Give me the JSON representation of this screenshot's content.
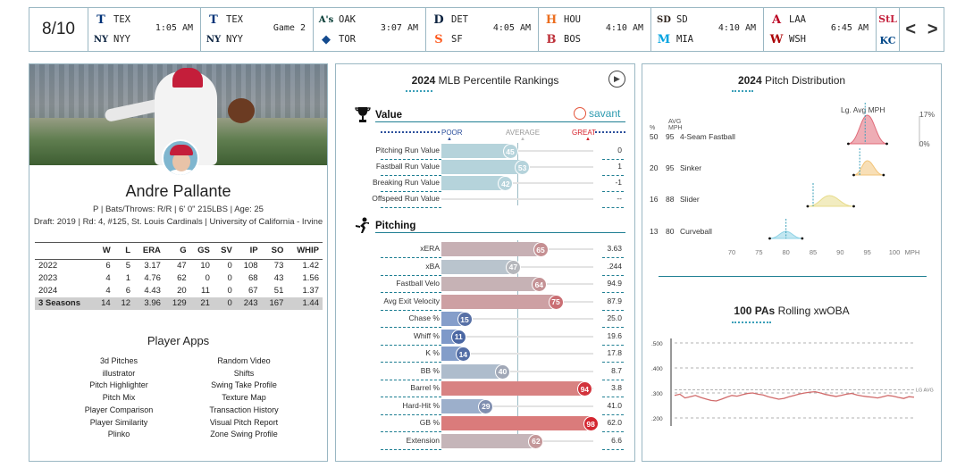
{
  "scorebar": {
    "date": "8/10",
    "games": [
      {
        "away": "TEX",
        "home": "NYY",
        "away_color": "#003278",
        "home_color": "#0c2340",
        "away_logo": "T",
        "home_logo": "NY",
        "status": "1:05 AM"
      },
      {
        "away": "TEX",
        "home": "NYY",
        "away_color": "#003278",
        "home_color": "#0c2340",
        "away_logo": "T",
        "home_logo": "NY",
        "status": "Game 2"
      },
      {
        "away": "OAK",
        "home": "TOR",
        "away_color": "#003831",
        "home_color": "#134a8e",
        "away_logo": "A's",
        "home_logo": "◆",
        "status": "3:07 AM"
      },
      {
        "away": "DET",
        "home": "SF",
        "away_color": "#0c2340",
        "home_color": "#fd5a1e",
        "away_logo": "D",
        "home_logo": "S",
        "status": "4:05 AM"
      },
      {
        "away": "HOU",
        "home": "BOS",
        "away_color": "#eb6e1f",
        "home_color": "#bd3039",
        "away_logo": "H",
        "home_logo": "B",
        "status": "4:10 AM"
      },
      {
        "away": "SD",
        "home": "MIA",
        "away_color": "#2f241d",
        "home_color": "#00a3e0",
        "away_logo": "SD",
        "home_logo": "M",
        "status": "4:10 AM"
      },
      {
        "away": "LAA",
        "home": "WSH",
        "away_color": "#ba0021",
        "home_color": "#ab0003",
        "away_logo": "A",
        "home_logo": "W",
        "status": "6:45 AM"
      }
    ],
    "last_game": {
      "away_logo": "StL",
      "home_logo": "KC",
      "away_color": "#c41e3a",
      "home_color": "#004687"
    },
    "prev": "<",
    "next": ">"
  },
  "player": {
    "name": "Andre Pallante",
    "info": "P | Bats/Throws: R/R | 6' 0\" 215LBS | Age: 25",
    "draft": "Draft: 2019 | Rd: 4, #125, St. Louis Cardinals | University of California - Irvine",
    "stats_headers": [
      "",
      "W",
      "L",
      "ERA",
      "G",
      "GS",
      "SV",
      "IP",
      "SO",
      "WHIP"
    ],
    "stats_rows": [
      [
        "2022",
        "6",
        "5",
        "3.17",
        "47",
        "10",
        "0",
        "108",
        "73",
        "1.42"
      ],
      [
        "2023",
        "4",
        "1",
        "4.76",
        "62",
        "0",
        "0",
        "68",
        "43",
        "1.56"
      ],
      [
        "2024",
        "4",
        "6",
        "4.43",
        "20",
        "11",
        "0",
        "67",
        "51",
        "1.37"
      ]
    ],
    "stats_total": [
      "3 Seasons",
      "14",
      "12",
      "3.96",
      "129",
      "21",
      "0",
      "243",
      "167",
      "1.44"
    ],
    "apps_title": "Player Apps",
    "apps": [
      "3d Pitches",
      "Random Video",
      "illustrator",
      "Shifts",
      "Pitch Highlighter",
      "Swing Take Profile",
      "Pitch Mix",
      "Texture Map",
      "Player Comparison",
      "Transaction History",
      "Player Similarity",
      "Visual Pitch Report",
      "Plinko",
      "Zone Swing Profile"
    ]
  },
  "percentile": {
    "title_year": "2024",
    "title_rest": "MLB Percentile Rankings",
    "play_icon": "▶",
    "value_head": "Value",
    "savant": "savant",
    "scale": {
      "poor": "POOR",
      "average": "AVERAGE",
      "great": "GREAT"
    },
    "value_rows": [
      {
        "label": "Pitching Run Value",
        "pct": 45,
        "val": "0"
      },
      {
        "label": "Fastball Run Value",
        "pct": 53,
        "val": "1"
      },
      {
        "label": "Breaking Run Value",
        "pct": 42,
        "val": "-1"
      },
      {
        "label": "Offspeed Run Value",
        "pct": null,
        "val": "--"
      }
    ],
    "pitching_head": "Pitching",
    "pitching_rows": [
      {
        "label": "xERA",
        "pct": 65,
        "val": "3.63"
      },
      {
        "label": "xBA",
        "pct": 47,
        "val": ".244"
      },
      {
        "label": "Fastball Velo",
        "pct": 64,
        "val": "94.9"
      },
      {
        "label": "Avg Exit Velocity",
        "pct": 75,
        "val": "87.9"
      },
      {
        "label": "Chase %",
        "pct": 15,
        "val": "25.0"
      },
      {
        "label": "Whiff %",
        "pct": 11,
        "val": "19.6"
      },
      {
        "label": "K %",
        "pct": 14,
        "val": "17.8"
      },
      {
        "label": "BB %",
        "pct": 40,
        "val": "8.7"
      },
      {
        "label": "Barrel %",
        "pct": 94,
        "val": "3.8"
      },
      {
        "label": "Hard-Hit %",
        "pct": 29,
        "val": "41.0"
      },
      {
        "label": "GB %",
        "pct": 98,
        "val": "62.0"
      },
      {
        "label": "Extension",
        "pct": 62,
        "val": "6.6"
      }
    ]
  },
  "pitch_dist": {
    "title_year": "2024",
    "title_rest": "Pitch Distribution",
    "lg_label": "Lg. Avg MPH",
    "col_pct": "%",
    "col_avg": "AVG",
    "col_mph": "MPH",
    "pct_max": "17%",
    "pct_min": "0%",
    "pitches": [
      {
        "pct": "50",
        "mph": "95",
        "name": "4-Seam Fastball",
        "color": "#e06a78",
        "lg": 94.6,
        "lo": 91.5,
        "hi": 98.6
      },
      {
        "pct": "20",
        "mph": "95",
        "name": "Sinker",
        "color": "#f2c57a",
        "lg": 93.6,
        "lo": 92.5,
        "hi": 98.0
      },
      {
        "pct": "16",
        "mph": "88",
        "name": "Slider",
        "color": "#e8dc8c",
        "lg": 85.0,
        "lo": 84.0,
        "hi": 92.5
      },
      {
        "pct": "13",
        "mph": "80",
        "name": "Curveball",
        "color": "#8fd3e6",
        "lg": 80.0,
        "lo": 77.0,
        "hi": 83.0
      }
    ],
    "axis": [
      "70",
      "75",
      "80",
      "85",
      "90",
      "95",
      "100"
    ],
    "axis_unit": "MPH"
  },
  "rolling": {
    "title_num": "100 PAs",
    "title_rest": "Rolling xwOBA",
    "yticks": [
      ".500",
      ".400",
      ".300",
      ".200"
    ],
    "lg_avg_label": "LG AVG",
    "lg_avg": 0.312,
    "series_color": "#d16b6b",
    "values": [
      0.29,
      0.295,
      0.28,
      0.285,
      0.29,
      0.282,
      0.276,
      0.27,
      0.268,
      0.275,
      0.283,
      0.29,
      0.287,
      0.293,
      0.298,
      0.3,
      0.295,
      0.292,
      0.285,
      0.28,
      0.275,
      0.278,
      0.285,
      0.29,
      0.296,
      0.3,
      0.303,
      0.305,
      0.3,
      0.294,
      0.29,
      0.286,
      0.29,
      0.295,
      0.298,
      0.292,
      0.288,
      0.285,
      0.283,
      0.28,
      0.285,
      0.29,
      0.287,
      0.282,
      0.278,
      0.285,
      0.283
    ]
  }
}
